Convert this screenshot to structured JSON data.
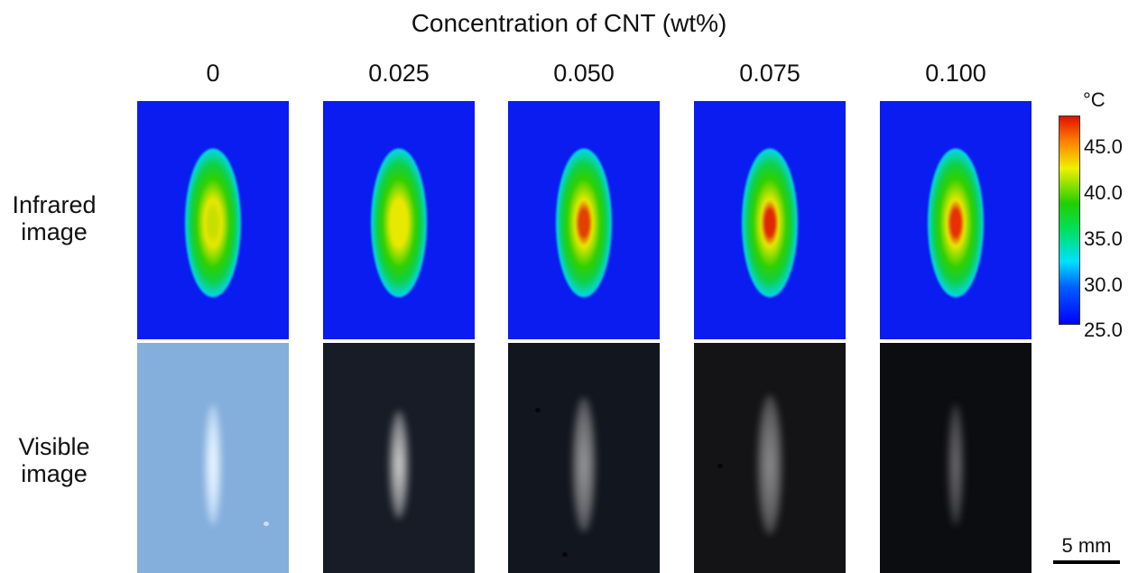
{
  "title": "Concentration of CNT (wt%)",
  "columns": [
    "0",
    "0.025",
    "0.050",
    "0.075",
    "0.100"
  ],
  "rows": {
    "infrared": [
      "Infrared",
      "image"
    ],
    "visible": [
      "Visible",
      "image"
    ]
  },
  "colorbar": {
    "unit": "°C",
    "ticks": [
      "45.0",
      "40.0",
      "35.0",
      "30.0",
      "25.0"
    ],
    "tick_values": [
      45,
      40,
      35,
      30,
      25
    ],
    "range": [
      25,
      48
    ],
    "colors": [
      "#0000ff",
      "#00e0ff",
      "#20d000",
      "#f0f000",
      "#ff8000",
      "#e01000"
    ]
  },
  "infrared_peak_colors": [
    "#c8e000",
    "#e8e800",
    "#e04000",
    "#e02800",
    "#e83000"
  ],
  "visible_backgrounds": [
    "#84aedc",
    "#171c26",
    "#12161e",
    "#141416",
    "#0c0d10"
  ],
  "scalebar": {
    "label": "5 mm"
  }
}
